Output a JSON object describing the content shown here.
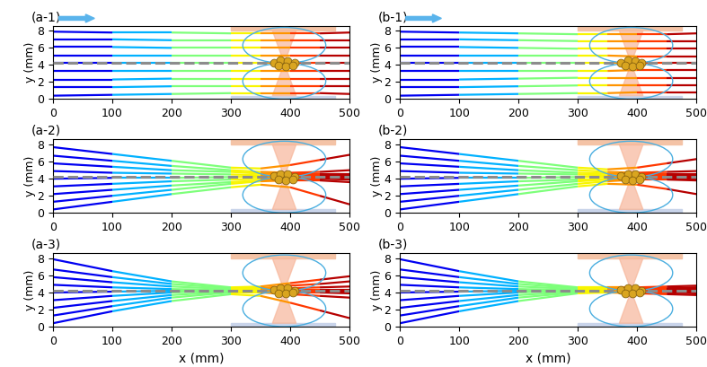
{
  "chart_data": [
    {
      "type": "line",
      "title": "(a-1)",
      "ylabel": "y (mm)",
      "xlim": [
        0,
        500
      ],
      "ylim": [
        0,
        8.6
      ],
      "xticks": [
        0,
        100,
        200,
        300,
        400,
        500
      ],
      "yticks": [
        0,
        2,
        4,
        6,
        8
      ],
      "centerline_y": 4.2,
      "line_style": "dashed",
      "color": "#8c8c8c",
      "x": [
        0,
        100,
        200,
        300,
        350,
        400,
        450,
        500
      ],
      "series": [
        {
          "values": [
            0.4,
            0.5,
            0.6,
            0.7,
            0.7,
            0.7,
            0.7,
            0.6
          ]
        },
        {
          "values": [
            1.4,
            1.4,
            1.5,
            1.5,
            1.5,
            1.5,
            1.5,
            1.5
          ]
        },
        {
          "values": [
            2.3,
            2.3,
            2.4,
            2.4,
            2.4,
            2.4,
            2.4,
            2.4
          ]
        },
        {
          "values": [
            3.3,
            3.3,
            3.3,
            3.3,
            3.3,
            3.3,
            3.3,
            3.3
          ]
        },
        {
          "values": [
            4.2,
            4.2,
            4.2,
            4.2,
            4.2,
            4.2,
            4.2,
            4.2
          ]
        },
        {
          "values": [
            5.1,
            5.1,
            5.1,
            5.1,
            5.1,
            5.1,
            5.1,
            5.1
          ]
        },
        {
          "values": [
            6.1,
            6.1,
            6.0,
            6.0,
            6.0,
            6.0,
            6.0,
            6.0
          ]
        },
        {
          "values": [
            7.0,
            7.0,
            6.9,
            6.9,
            6.9,
            6.9,
            6.9,
            6.9
          ]
        },
        {
          "values": [
            7.9,
            7.8,
            7.8,
            7.7,
            7.7,
            7.7,
            7.7,
            7.8
          ]
        }
      ]
    },
    {
      "type": "line",
      "title": "(a-2)",
      "ylabel": "y (mm)",
      "xlim": [
        0,
        500
      ],
      "ylim": [
        0,
        8.6
      ],
      "xticks": [
        0,
        100,
        200,
        300,
        400,
        500
      ],
      "yticks": [
        0,
        2,
        4,
        6,
        8
      ],
      "centerline_y": 4.2,
      "line_style": "dashed",
      "color": "#8c8c8c",
      "x": [
        0,
        100,
        200,
        300,
        350,
        400,
        450,
        500
      ],
      "series": [
        {
          "values": [
            0.4,
            1.3,
            2.2,
            3.0,
            3.3,
            3.0,
            2.0,
            1.0
          ]
        },
        {
          "values": [
            1.3,
            2.0,
            2.7,
            3.4,
            3.7,
            3.8,
            3.8,
            3.6
          ]
        },
        {
          "values": [
            2.2,
            2.7,
            3.2,
            3.6,
            3.8,
            4.0,
            4.0,
            3.9
          ]
        },
        {
          "values": [
            3.1,
            3.4,
            3.7,
            3.9,
            4.0,
            4.1,
            4.1,
            4.1
          ]
        },
        {
          "values": [
            4.0,
            4.1,
            4.1,
            4.2,
            4.2,
            4.2,
            4.2,
            4.2
          ]
        },
        {
          "values": [
            4.9,
            4.7,
            4.6,
            4.5,
            4.4,
            4.3,
            4.3,
            4.3
          ]
        },
        {
          "values": [
            5.8,
            5.4,
            5.0,
            4.8,
            4.6,
            4.5,
            4.5,
            4.5
          ]
        },
        {
          "values": [
            6.7,
            6.1,
            5.5,
            5.0,
            4.8,
            4.7,
            4.8,
            5.0
          ]
        },
        {
          "values": [
            7.7,
            6.9,
            6.1,
            5.3,
            5.2,
            5.6,
            6.2,
            6.8
          ]
        }
      ]
    },
    {
      "type": "line",
      "title": "(a-3)",
      "xlabel": "x (mm)",
      "ylabel": "y (mm)",
      "xlim": [
        0,
        500
      ],
      "ylim": [
        0,
        8.6
      ],
      "xticks": [
        0,
        100,
        200,
        300,
        400,
        500
      ],
      "yticks": [
        0,
        2,
        4,
        6,
        8
      ],
      "centerline_y": 4.2,
      "line_style": "dashed",
      "color": "#8c8c8c",
      "x": [
        0,
        100,
        200,
        300,
        350,
        400,
        450,
        500
      ],
      "series": [
        {
          "values": [
            0.4,
            1.8,
            3.0,
            3.8,
            3.6,
            2.8,
            1.9,
            1.0
          ]
        },
        {
          "values": [
            1.3,
            2.4,
            3.4,
            4.0,
            4.0,
            3.8,
            3.6,
            3.4
          ]
        },
        {
          "values": [
            2.2,
            3.0,
            3.7,
            4.1,
            4.1,
            4.0,
            4.0,
            3.9
          ]
        },
        {
          "values": [
            3.1,
            3.6,
            4.0,
            4.2,
            4.2,
            4.1,
            4.1,
            4.1
          ]
        },
        {
          "values": [
            4.0,
            4.1,
            4.2,
            4.2,
            4.2,
            4.2,
            4.2,
            4.2
          ]
        },
        {
          "values": [
            4.9,
            4.6,
            4.4,
            4.3,
            4.3,
            4.3,
            4.3,
            4.3
          ]
        },
        {
          "values": [
            5.8,
            5.2,
            4.7,
            4.4,
            4.4,
            4.5,
            4.6,
            4.7
          ]
        },
        {
          "values": [
            6.7,
            5.8,
            5.0,
            4.5,
            4.5,
            4.8,
            5.0,
            5.3
          ]
        },
        {
          "values": [
            7.9,
            6.5,
            5.3,
            4.6,
            4.7,
            5.1,
            5.5,
            5.9
          ]
        }
      ]
    },
    {
      "type": "line",
      "title": "(b-1)",
      "ylabel": "y (mm)",
      "xlim": [
        0,
        500
      ],
      "ylim": [
        0,
        8.6
      ],
      "xticks": [
        0,
        100,
        200,
        300,
        400,
        500
      ],
      "yticks": [
        0,
        2,
        4,
        6,
        8
      ],
      "centerline_y": 4.2,
      "line_style": "dashed",
      "color": "#8c8c8c",
      "x": [
        0,
        100,
        200,
        300,
        350,
        400,
        450,
        500
      ],
      "series": [
        {
          "values": [
            0.4,
            0.5,
            0.6,
            0.7,
            0.7,
            0.8,
            0.8,
            0.8
          ]
        },
        {
          "values": [
            1.4,
            1.4,
            1.5,
            1.6,
            1.6,
            1.6,
            1.6,
            1.6
          ]
        },
        {
          "values": [
            2.3,
            2.3,
            2.4,
            2.5,
            2.5,
            2.5,
            2.5,
            2.5
          ]
        },
        {
          "values": [
            3.3,
            3.3,
            3.3,
            3.3,
            3.3,
            3.4,
            3.4,
            3.4
          ]
        },
        {
          "values": [
            4.2,
            4.2,
            4.2,
            4.2,
            4.2,
            4.2,
            4.2,
            4.2
          ]
        },
        {
          "values": [
            5.1,
            5.1,
            5.1,
            5.1,
            5.1,
            5.0,
            5.0,
            5.0
          ]
        },
        {
          "values": [
            6.1,
            6.1,
            6.0,
            5.9,
            5.9,
            5.9,
            5.9,
            5.9
          ]
        },
        {
          "values": [
            7.0,
            7.0,
            6.9,
            6.8,
            6.8,
            6.8,
            6.8,
            6.8
          ]
        },
        {
          "values": [
            7.9,
            7.8,
            7.7,
            7.6,
            7.6,
            7.6,
            7.6,
            7.7
          ]
        }
      ]
    },
    {
      "type": "line",
      "title": "(b-2)",
      "ylabel": "y (mm)",
      "xlim": [
        0,
        500
      ],
      "ylim": [
        0,
        8.6
      ],
      "xticks": [
        0,
        100,
        200,
        300,
        400,
        500
      ],
      "yticks": [
        0,
        2,
        4,
        6,
        8
      ],
      "centerline_y": 4.2,
      "line_style": "dashed",
      "color": "#8c8c8c",
      "x": [
        0,
        100,
        200,
        300,
        350,
        400,
        450,
        500
      ],
      "series": [
        {
          "values": [
            0.4,
            1.3,
            2.2,
            3.1,
            3.4,
            3.3,
            2.8,
            2.2
          ]
        },
        {
          "values": [
            1.3,
            2.0,
            2.7,
            3.4,
            3.7,
            3.9,
            3.9,
            3.8
          ]
        },
        {
          "values": [
            2.2,
            2.7,
            3.2,
            3.7,
            3.9,
            4.0,
            4.0,
            4.0
          ]
        },
        {
          "values": [
            3.1,
            3.4,
            3.7,
            3.9,
            4.0,
            4.1,
            4.1,
            4.1
          ]
        },
        {
          "values": [
            4.0,
            4.1,
            4.1,
            4.2,
            4.2,
            4.2,
            4.2,
            4.2
          ]
        },
        {
          "values": [
            4.9,
            4.7,
            4.6,
            4.5,
            4.4,
            4.3,
            4.3,
            4.3
          ]
        },
        {
          "values": [
            5.8,
            5.4,
            5.0,
            4.7,
            4.6,
            4.5,
            4.5,
            4.5
          ]
        },
        {
          "values": [
            6.7,
            6.1,
            5.5,
            5.0,
            4.8,
            4.7,
            4.8,
            4.9
          ]
        },
        {
          "values": [
            7.7,
            6.9,
            6.1,
            5.3,
            5.1,
            5.3,
            5.8,
            6.3
          ]
        }
      ]
    },
    {
      "type": "line",
      "title": "(b-3)",
      "xlabel": "x (mm)",
      "ylabel": "y (mm)",
      "xlim": [
        0,
        500
      ],
      "ylim": [
        0,
        8.6
      ],
      "xticks": [
        0,
        100,
        200,
        300,
        400,
        500
      ],
      "yticks": [
        0,
        2,
        4,
        6,
        8
      ],
      "centerline_y": 4.2,
      "line_style": "dashed",
      "color": "#8c8c8c",
      "x": [
        0,
        100,
        200,
        300,
        350,
        400,
        450,
        500
      ],
      "series": [
        {
          "values": [
            0.4,
            1.8,
            3.0,
            3.9,
            4.0,
            3.9,
            3.8,
            3.7
          ]
        },
        {
          "values": [
            1.3,
            2.4,
            3.4,
            4.0,
            4.1,
            4.0,
            4.0,
            3.9
          ]
        },
        {
          "values": [
            2.2,
            3.0,
            3.7,
            4.1,
            4.1,
            4.1,
            4.1,
            4.0
          ]
        },
        {
          "values": [
            3.1,
            3.6,
            4.0,
            4.2,
            4.2,
            4.1,
            4.1,
            4.1
          ]
        },
        {
          "values": [
            4.0,
            4.1,
            4.2,
            4.2,
            4.2,
            4.2,
            4.2,
            4.2
          ]
        },
        {
          "values": [
            4.9,
            4.6,
            4.4,
            4.3,
            4.3,
            4.3,
            4.3,
            4.3
          ]
        },
        {
          "values": [
            5.8,
            5.2,
            4.7,
            4.4,
            4.4,
            4.4,
            4.4,
            4.4
          ]
        },
        {
          "values": [
            6.7,
            5.8,
            5.0,
            4.5,
            4.5,
            4.5,
            4.5,
            4.6
          ]
        },
        {
          "values": [
            7.9,
            6.5,
            5.3,
            4.6,
            4.6,
            4.6,
            4.7,
            4.8
          ]
        }
      ]
    }
  ]
}
